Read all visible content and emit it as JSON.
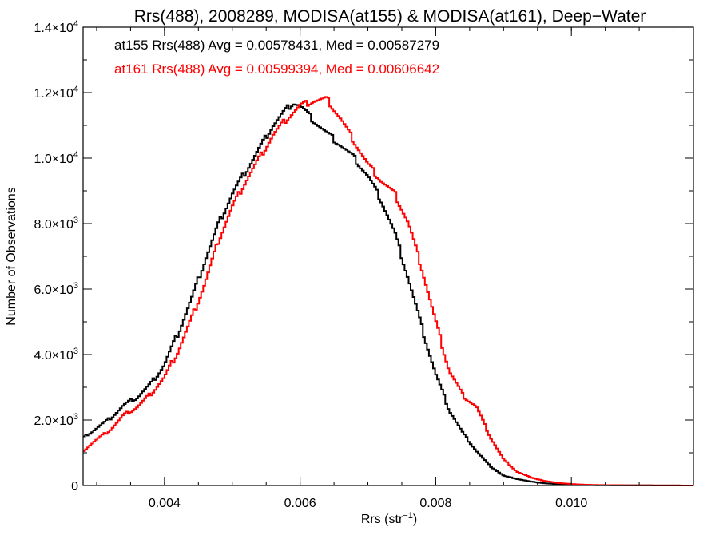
{
  "chart_data": {
    "type": "line",
    "title": "Rrs(488), 2008289, MODISA(at155) & MODISA(at161), Deep−Water",
    "xlabel": "Rrs (str",
    "xlabel_sup": "−1",
    "xlabel_close": ")",
    "ylabel": "Number of Observations",
    "xlim": [
      0.0028,
      0.0118
    ],
    "ylim": [
      0,
      14000
    ],
    "xticks": [
      {
        "value": 0.004,
        "label": "0.004"
      },
      {
        "value": 0.006,
        "label": "0.006"
      },
      {
        "value": 0.008,
        "label": "0.008"
      },
      {
        "value": 0.01,
        "label": "0.010"
      }
    ],
    "yticks": [
      {
        "value": 0,
        "label": "0"
      },
      {
        "value": 2000,
        "label": "2.0×10",
        "exp": "3"
      },
      {
        "value": 4000,
        "label": "4.0×10",
        "exp": "3"
      },
      {
        "value": 6000,
        "label": "6.0×10",
        "exp": "3"
      },
      {
        "value": 8000,
        "label": "8.0×10",
        "exp": "3"
      },
      {
        "value": 10000,
        "label": "1.0×10",
        "exp": "4"
      },
      {
        "value": 12000,
        "label": "1.2×10",
        "exp": "4"
      },
      {
        "value": 14000,
        "label": "1.4×10",
        "exp": "4"
      }
    ],
    "annotations": [
      {
        "text": "at155 Rrs(488) Avg = 0.00578431, Med = 0.00587279",
        "color": "#000000"
      },
      {
        "text": "at161 Rrs(488) Avg = 0.00599394, Med = 0.00606642",
        "color": "#ff0000"
      }
    ],
    "series": [
      {
        "color": "#000000",
        "x": [
          0.0028,
          0.003,
          0.0032,
          0.0034,
          0.0036,
          0.0038,
          0.004,
          0.0042,
          0.0044,
          0.0046,
          0.0048,
          0.005,
          0.0052,
          0.0054,
          0.0056,
          0.0058,
          0.0059,
          0.006,
          0.0062,
          0.0064,
          0.0066,
          0.0068,
          0.007,
          0.0072,
          0.0074,
          0.0076,
          0.0078,
          0.008,
          0.0082,
          0.0084,
          0.0086,
          0.0088,
          0.009,
          0.0092,
          0.0094,
          0.0096,
          0.0098,
          0.01,
          0.0104,
          0.011,
          0.0118
        ],
        "values": [
          1450,
          1750,
          2050,
          2450,
          2700,
          3100,
          3700,
          4650,
          5700,
          6900,
          8000,
          8900,
          9600,
          10300,
          11000,
          11500,
          11700,
          11600,
          11150,
          10750,
          10400,
          10000,
          9450,
          8700,
          7700,
          6300,
          4800,
          3400,
          2300,
          1600,
          1050,
          600,
          300,
          200,
          120,
          70,
          40,
          20,
          10,
          5,
          0
        ]
      },
      {
        "color": "#ff0000",
        "x": [
          0.0028,
          0.003,
          0.0032,
          0.0034,
          0.0036,
          0.0038,
          0.004,
          0.0042,
          0.0044,
          0.0046,
          0.0048,
          0.005,
          0.0052,
          0.0054,
          0.0056,
          0.0058,
          0.006,
          0.0062,
          0.0064,
          0.0066,
          0.0068,
          0.007,
          0.0072,
          0.0074,
          0.0076,
          0.0078,
          0.008,
          0.0082,
          0.0084,
          0.0086,
          0.0088,
          0.009,
          0.0092,
          0.0094,
          0.0096,
          0.0098,
          0.01,
          0.0102,
          0.0104,
          0.011,
          0.0118
        ],
        "values": [
          1050,
          1400,
          1700,
          2150,
          2400,
          2800,
          3300,
          4100,
          5100,
          6200,
          7500,
          8500,
          9300,
          10000,
          10700,
          11200,
          11600,
          11750,
          11800,
          11200,
          10500,
          9800,
          9300,
          8900,
          8000,
          6600,
          5000,
          3500,
          2750,
          2400,
          1500,
          800,
          420,
          250,
          140,
          80,
          45,
          25,
          15,
          5,
          0
        ]
      }
    ]
  }
}
